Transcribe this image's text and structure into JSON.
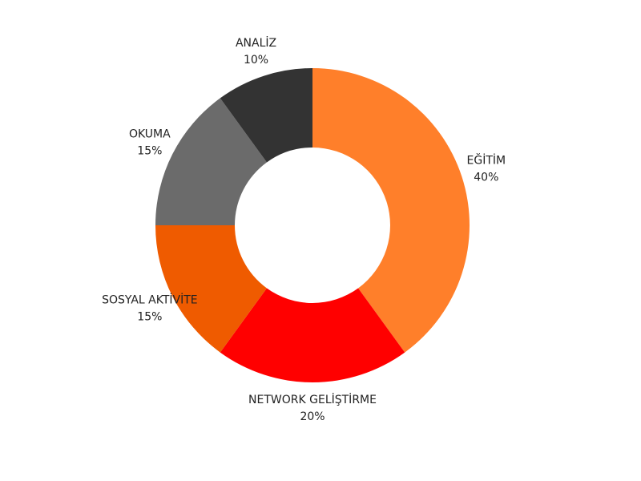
{
  "chart_data": {
    "type": "donut",
    "categories": [
      "EĞİTİM",
      "NETWORK GELİŞTİRME",
      "SOSYAL AKTİVİTE",
      "OKUMA",
      "ANALİZ"
    ],
    "values": [
      40,
      20,
      15,
      15,
      10
    ],
    "value_labels": [
      "40%",
      "20%",
      "15%",
      "15%",
      "10%"
    ],
    "colors": [
      "#ff7f2a",
      "#ff0000",
      "#ef5b00",
      "#6b6b6b",
      "#333333"
    ]
  }
}
